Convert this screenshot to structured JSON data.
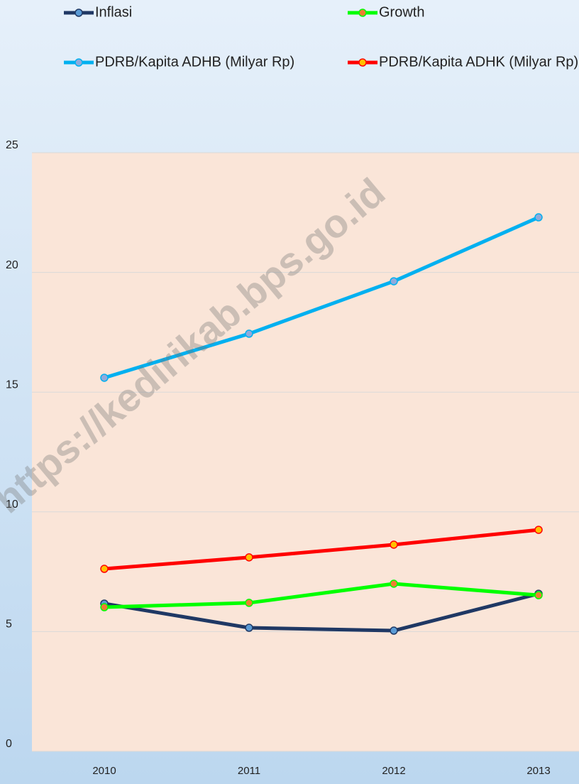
{
  "chart_data": {
    "type": "line",
    "categories": [
      "2010",
      "2011",
      "2012",
      "2013"
    ],
    "series": [
      {
        "name": "Inflasi",
        "color": "#1f3864",
        "marker_color": "#5b9bd5",
        "values": [
          6.17,
          5.16,
          5.04,
          6.58
        ]
      },
      {
        "name": "Growth",
        "color": "#00ff00",
        "marker_color": "#ed7d31",
        "values": [
          6.02,
          6.2,
          7.0,
          6.52
        ]
      },
      {
        "name": "PDRB/Kapita ADHB (Milyar Rp)",
        "color": "#00b0f0",
        "marker_color": "#8faadc",
        "values": [
          15.6,
          17.44,
          19.63,
          22.3
        ]
      },
      {
        "name": "PDRB/Kapita ADHK (Milyar Rp)",
        "color": "#ff0000",
        "marker_color": "#ffc000",
        "values": [
          7.62,
          8.1,
          8.63,
          9.25
        ]
      }
    ],
    "ylim": [
      0,
      25
    ],
    "yticks": [
      0,
      5,
      10,
      15,
      20,
      25
    ],
    "grid": true,
    "watermark": "https://kedirikab.bps.go.id"
  }
}
